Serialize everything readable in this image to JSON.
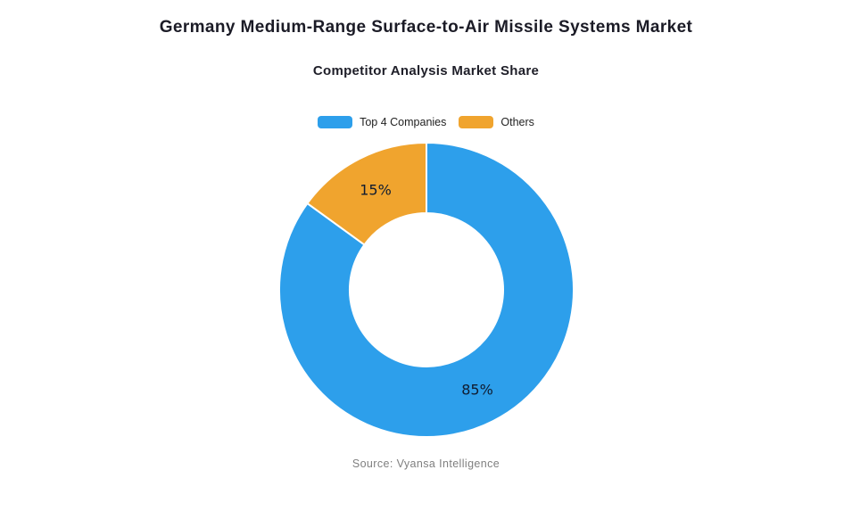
{
  "page": {
    "title": "Germany Medium-Range Surface-to-Air Missile Systems Market",
    "subtitle": "Competitor Analysis Market Share",
    "source": "Source: Vyansa Intelligence",
    "background_color": "#ffffff"
  },
  "chart_data": {
    "type": "pie",
    "subtype": "donut",
    "title": "Competitor Analysis Market Share",
    "categories": [
      "Top 4 Companies",
      "Others"
    ],
    "values": [
      85,
      15
    ],
    "value_labels": [
      "85%",
      "15%"
    ],
    "colors": [
      "#2D9FEB",
      "#F0A42E"
    ],
    "border_color": "#ffffff",
    "border_width": 2,
    "start_angle_deg": 0,
    "direction": "clockwise",
    "inner_radius_ratio": 0.52,
    "legend_position": "top",
    "legend": [
      "Top 4 Companies",
      "Others"
    ]
  },
  "style": {
    "title_color": "#1b1b26",
    "slice_label_color": "#101c30",
    "source_color": "#7f7f7f"
  }
}
